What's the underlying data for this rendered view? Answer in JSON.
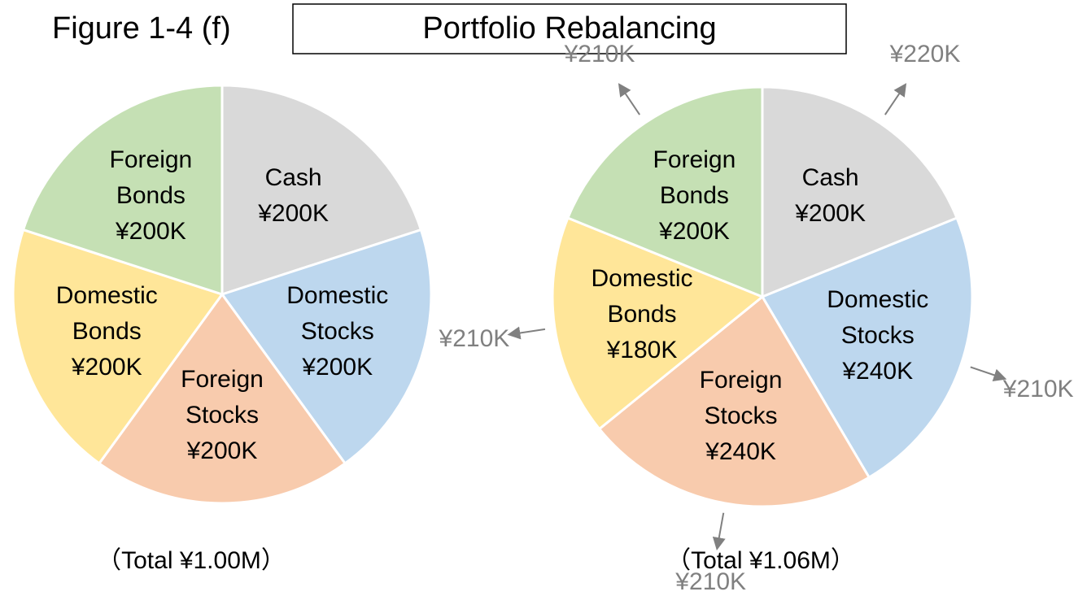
{
  "header": {
    "figure": "Figure 1-4 (f)",
    "title": "Portfolio Rebalancing"
  },
  "chart_data": [
    {
      "type": "pie",
      "categories": [
        "Cash",
        "Domestic Stocks",
        "Foreign Stocks",
        "Domestic Bonds",
        "Foreign Bonds"
      ],
      "values": [
        200000,
        200000,
        200000,
        200000,
        200000
      ],
      "value_labels": [
        "¥200K",
        "¥200K",
        "¥200K",
        "¥200K",
        "¥200K"
      ],
      "colors": [
        "#d9d9d9",
        "#bdd7ee",
        "#f8cbad",
        "#ffe699",
        "#c5e0b4"
      ],
      "total_label": "（Total ¥1.00M）"
    },
    {
      "type": "pie",
      "categories": [
        "Cash",
        "Domestic Stocks",
        "Foreign Stocks",
        "Domestic Bonds",
        "Foreign Bonds"
      ],
      "values": [
        200000,
        240000,
        240000,
        180000,
        200000
      ],
      "value_labels": [
        "¥200K",
        "¥240K",
        "¥240K",
        "¥180K",
        "¥200K"
      ],
      "colors": [
        "#d9d9d9",
        "#bdd7ee",
        "#f8cbad",
        "#ffe699",
        "#c5e0b4"
      ],
      "target_values": [
        220000,
        210000,
        210000,
        210000,
        210000
      ],
      "target_labels": [
        "¥220K",
        "¥210K",
        "¥210K",
        "¥210K",
        "¥210K"
      ],
      "total_label": "（Total ¥1.06M）"
    }
  ]
}
